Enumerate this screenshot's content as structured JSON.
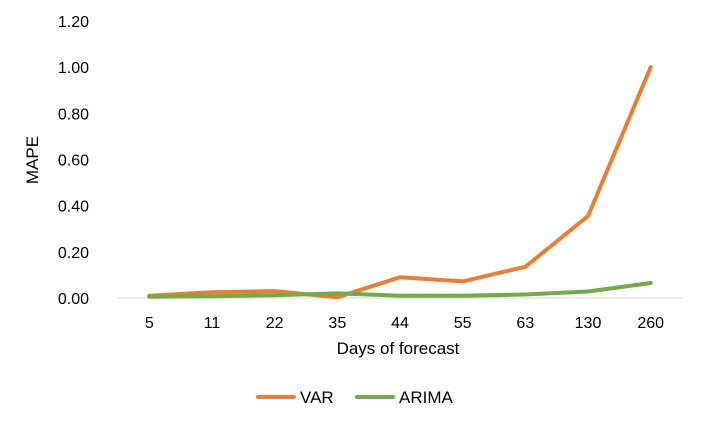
{
  "chart_data": {
    "type": "line",
    "title": "",
    "xlabel": "Days of forecast",
    "ylabel": "MAPE",
    "categories": [
      "5",
      "11",
      "22",
      "35",
      "44",
      "55",
      "63",
      "130",
      "260"
    ],
    "ylim": [
      0,
      1.2
    ],
    "yticks": [
      "0.00",
      "0.20",
      "0.40",
      "0.60",
      "0.80",
      "1.00",
      "1.20"
    ],
    "grid": false,
    "legend": "bottom",
    "series": [
      {
        "name": "VAR",
        "color": "#ED7D31",
        "values": [
          0.01,
          0.025,
          0.03,
          0.003,
          0.09,
          0.072,
          0.135,
          0.355,
          1.0
        ]
      },
      {
        "name": "ARIMA",
        "color": "#70AD47",
        "values": [
          0.005,
          0.008,
          0.012,
          0.02,
          0.01,
          0.01,
          0.015,
          0.028,
          0.065
        ]
      }
    ]
  }
}
